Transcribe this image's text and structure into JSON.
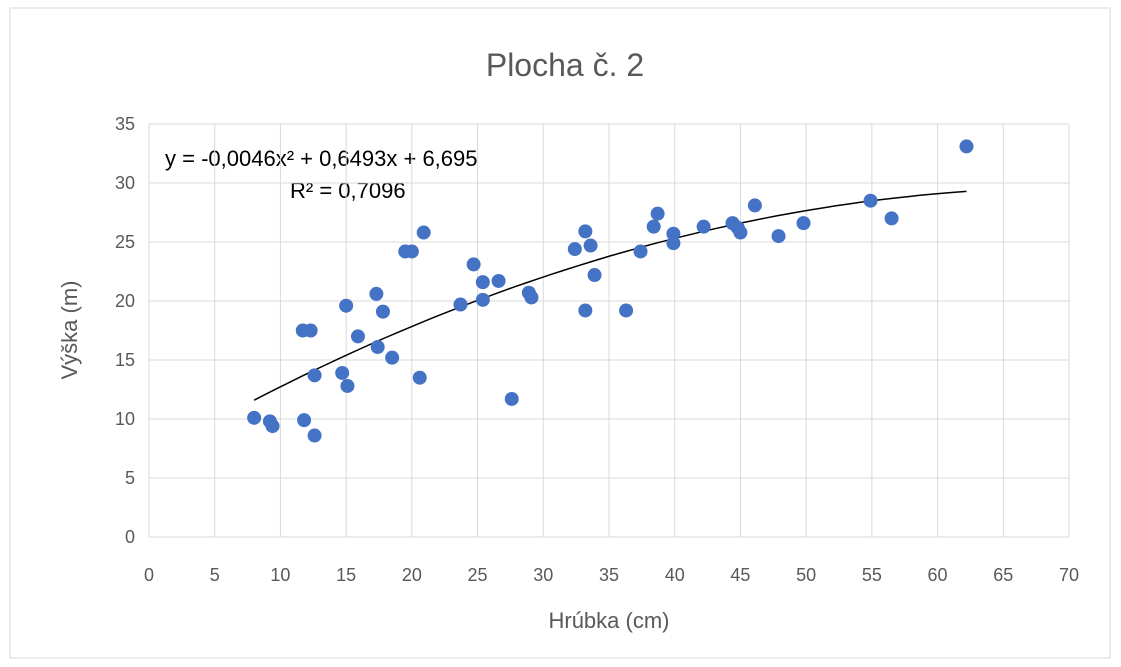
{
  "chart_data": {
    "type": "scatter",
    "title": "Plocha č. 2",
    "x_label": "Hrúbka (cm)",
    "y_label": "Výška (m)",
    "color": "#4472c4",
    "grid": true,
    "xlim": [
      0,
      70
    ],
    "xticks": [
      0,
      5,
      10,
      15,
      20,
      25,
      30,
      35,
      40,
      45,
      50,
      55,
      60,
      65,
      70
    ],
    "ylim": [
      0,
      35
    ],
    "yticks": [
      0,
      5,
      10,
      15,
      20,
      25,
      30,
      35
    ],
    "x": [
      8.0,
      9.2,
      9.4,
      11.8,
      12.6,
      11.7,
      12.3,
      12.6,
      14.7,
      15.1,
      15.0,
      15.9,
      17.3,
      17.4,
      17.8,
      18.5,
      19.5,
      20.0,
      20.6,
      20.9,
      23.7,
      24.7,
      25.4,
      25.4,
      26.6,
      27.6,
      28.9,
      29.1,
      32.4,
      33.2,
      33.2,
      33.6,
      33.9,
      36.3,
      37.4,
      38.4,
      38.7,
      39.9,
      39.9,
      42.2,
      44.4,
      44.8,
      45.0,
      46.1,
      47.9,
      49.8,
      54.9,
      56.5,
      62.2
    ],
    "values": [
      10.1,
      9.8,
      9.4,
      9.9,
      8.6,
      17.5,
      17.5,
      13.7,
      13.9,
      12.8,
      19.6,
      17.0,
      20.6,
      16.1,
      19.1,
      15.2,
      24.2,
      24.2,
      13.5,
      25.8,
      19.7,
      23.1,
      21.6,
      20.1,
      21.7,
      11.7,
      20.7,
      20.3,
      24.4,
      25.9,
      19.2,
      24.7,
      22.2,
      19.2,
      24.2,
      26.3,
      27.4,
      25.7,
      24.9,
      26.3,
      26.6,
      26.2,
      25.8,
      28.1,
      25.5,
      26.6,
      28.5,
      27.0,
      33.1
    ],
    "trendline": {
      "coefficients": [
        -0.0046,
        0.6493,
        6.695
      ],
      "equation": "y = -0,0046x² + 0,6493x + 6,695",
      "r2": "R² = 0,7096"
    }
  }
}
